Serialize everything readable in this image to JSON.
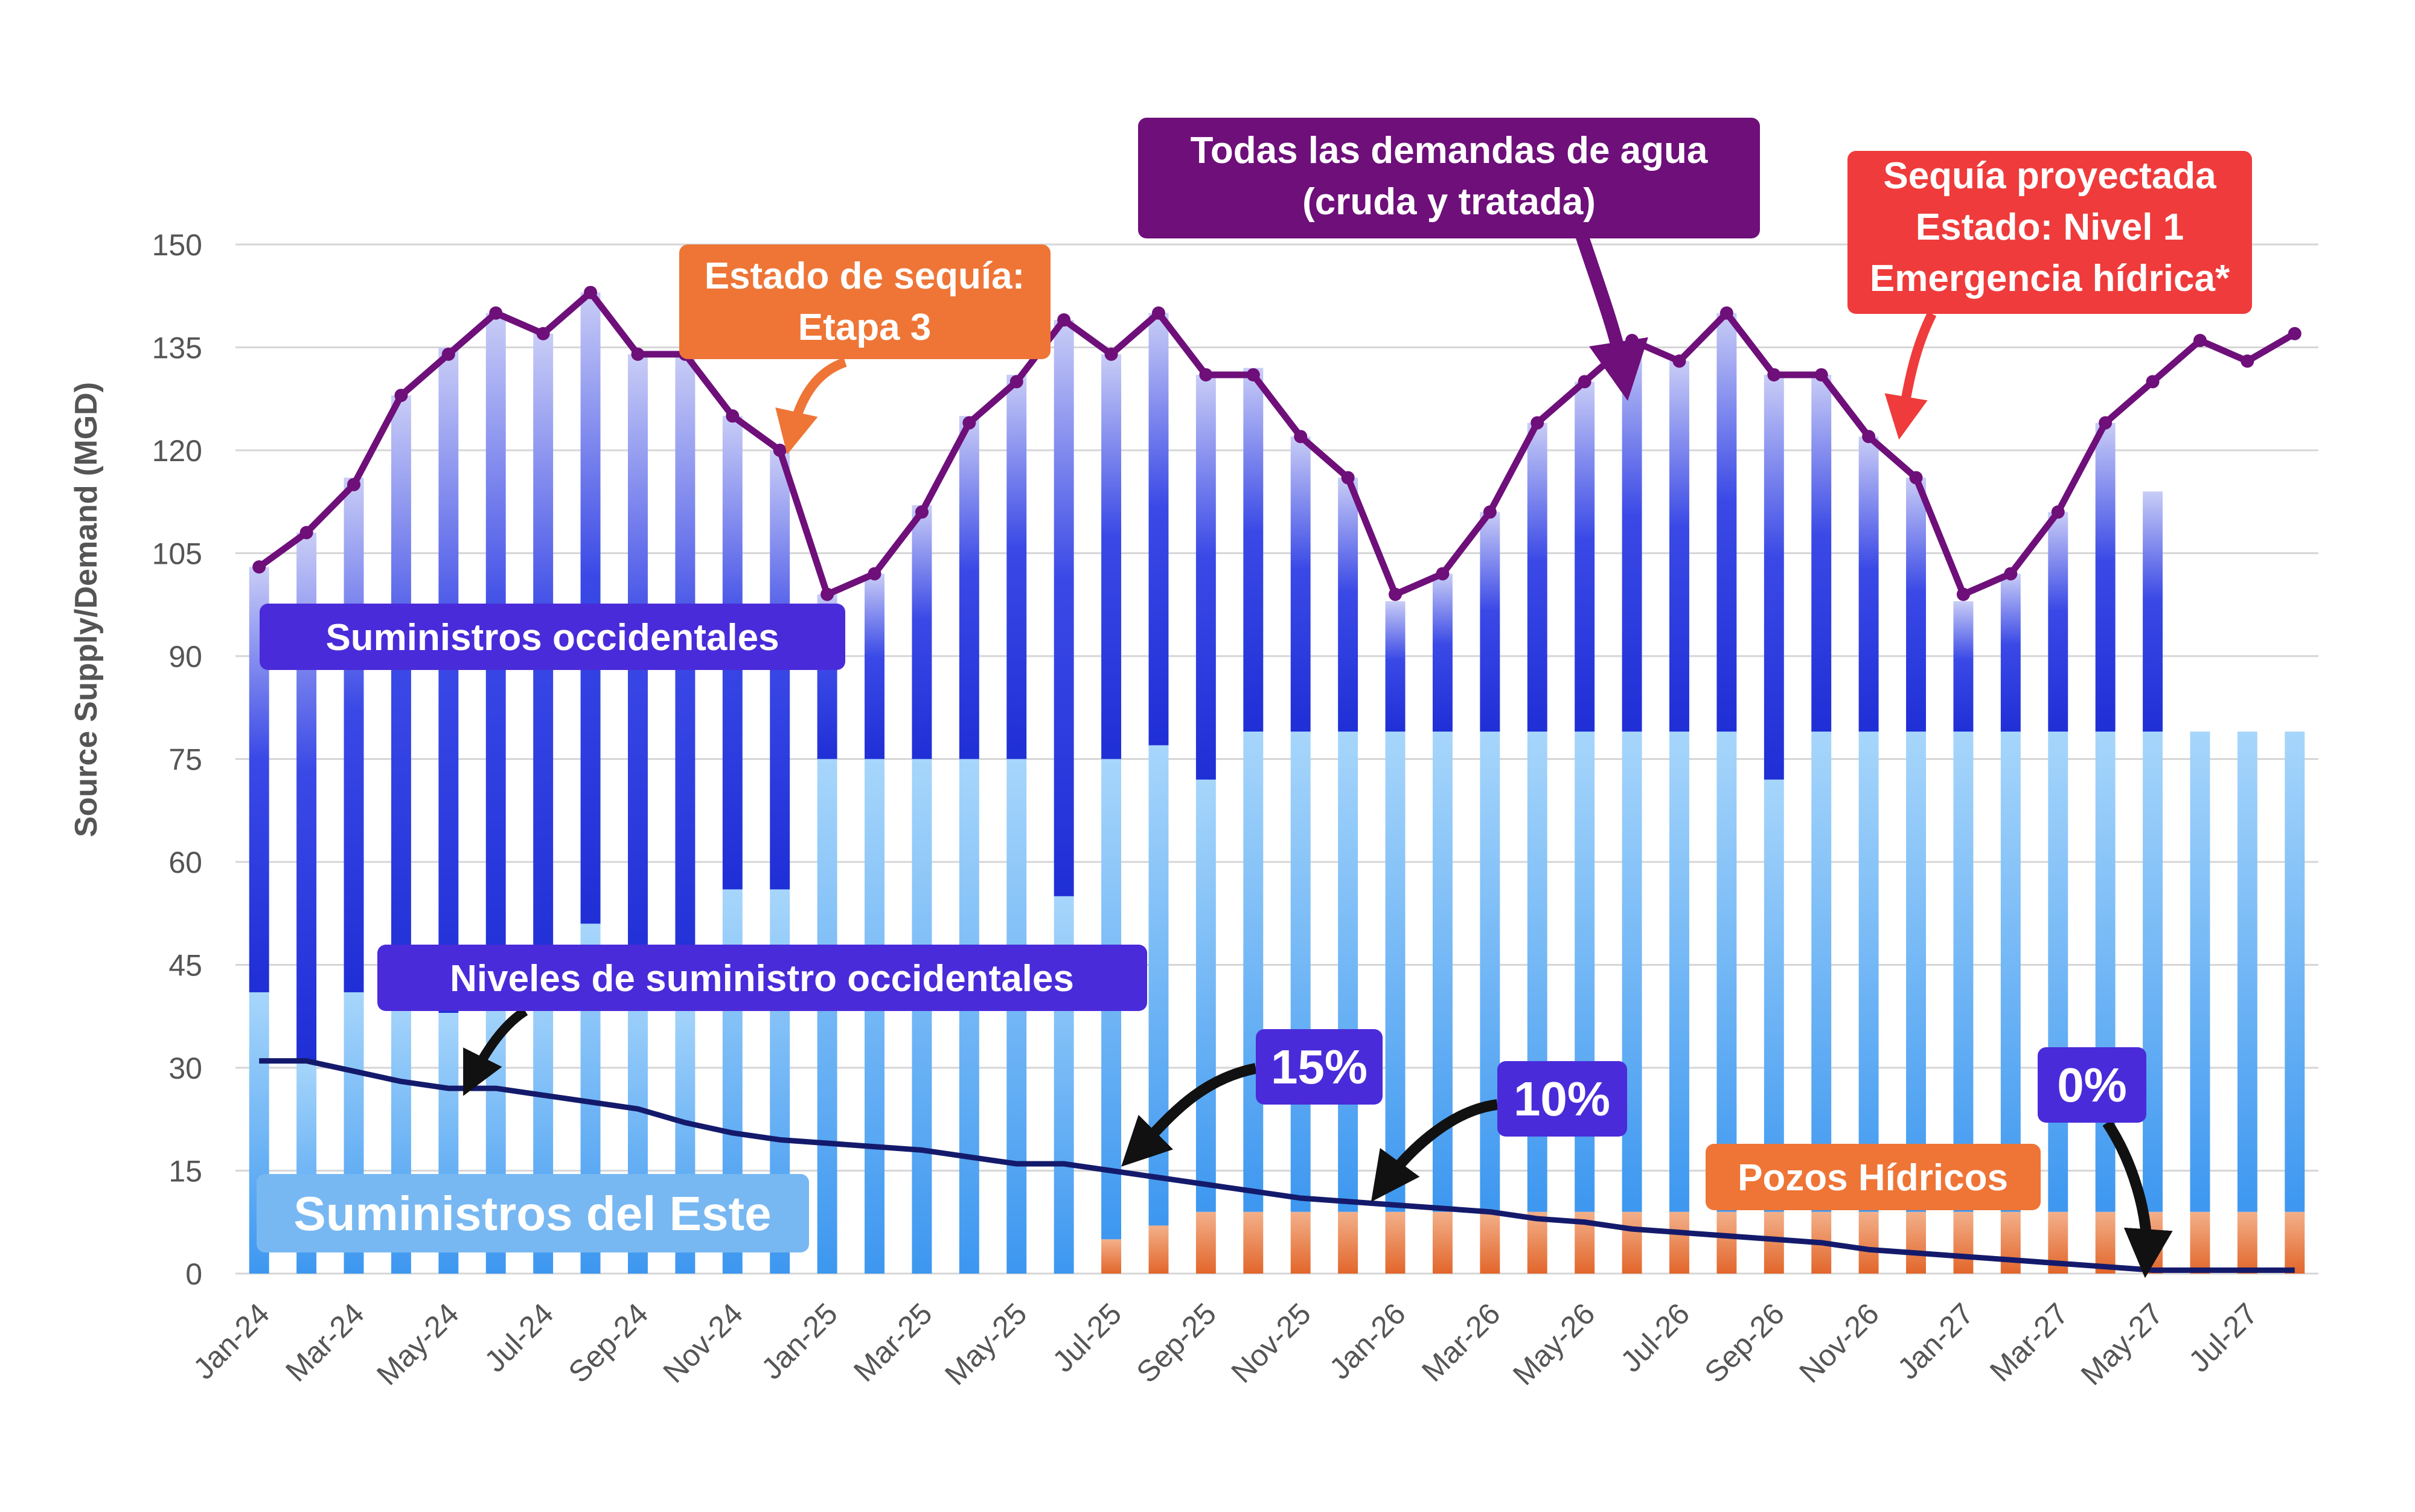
{
  "chart_data": {
    "type": "bar",
    "ylabel": "Source Supply/Demand (MGD)",
    "xlabel": "",
    "ylim": [
      0,
      150
    ],
    "yticks": [
      0,
      15,
      30,
      45,
      60,
      75,
      90,
      105,
      120,
      135,
      150
    ],
    "grid": true,
    "categories": [
      "Jan-24",
      "Feb-24",
      "Mar-24",
      "Apr-24",
      "May-24",
      "Jun-24",
      "Jul-24",
      "Aug-24",
      "Sep-24",
      "Oct-24",
      "Nov-24",
      "Dec-24",
      "Jan-25",
      "Feb-25",
      "Mar-25",
      "Apr-25",
      "May-25",
      "Jun-25",
      "Jul-25",
      "Aug-25",
      "Sep-25",
      "Oct-25",
      "Nov-25",
      "Dec-25",
      "Jan-26",
      "Feb-26",
      "Mar-26",
      "Apr-26",
      "May-26",
      "Jun-26",
      "Jul-26",
      "Aug-26",
      "Sep-26",
      "Oct-26",
      "Nov-26",
      "Dec-26",
      "Jan-27",
      "Feb-27",
      "Mar-27",
      "Apr-27",
      "May-27",
      "Jun-27",
      "Jul-27",
      "Aug-27"
    ],
    "x_tick_labels": [
      "Jan-24",
      "Mar-24",
      "May-24",
      "Jul-24",
      "Sep-24",
      "Nov-24",
      "Jan-25",
      "Mar-25",
      "May-25",
      "Jul-25",
      "Sep-25",
      "Nov-25",
      "Jan-26",
      "Mar-26",
      "May-26",
      "Jul-26",
      "Sep-26",
      "Nov-26",
      "Jan-27",
      "Mar-27",
      "May-27",
      "Jul-27"
    ],
    "series": [
      {
        "name": "Pozos Hídricos",
        "type": "bar",
        "color": "#e8743b",
        "values": [
          0,
          0,
          0,
          0,
          0,
          0,
          0,
          0,
          0,
          0,
          0,
          0,
          0,
          0,
          0,
          0,
          0,
          0,
          5,
          7,
          9,
          9,
          9,
          9,
          9,
          9,
          9,
          9,
          9,
          9,
          9,
          9,
          9,
          9,
          9,
          9,
          9,
          9,
          9,
          9,
          9,
          9,
          9,
          9
        ]
      },
      {
        "name": "Suministros del Este",
        "type": "bar",
        "color": "#5aa8f0",
        "values": [
          41,
          31,
          41,
          40,
          38,
          40,
          43,
          51,
          43,
          40,
          56,
          56,
          75,
          75,
          75,
          75,
          75,
          55,
          70,
          70,
          63,
          70,
          70,
          70,
          70,
          70,
          70,
          70,
          70,
          70,
          70,
          70,
          63,
          70,
          70,
          70,
          70,
          70,
          70,
          70,
          70,
          70,
          70,
          70
        ]
      },
      {
        "name": "Suministros occidentales",
        "type": "bar",
        "color": "#3a3fe0",
        "values": [
          62,
          77,
          75,
          88,
          97,
          100,
          94,
          92,
          91,
          94,
          69,
          64,
          24,
          27,
          37,
          50,
          56,
          84,
          59,
          63,
          59,
          53,
          43,
          37,
          19,
          23,
          32,
          45,
          51,
          57,
          54,
          61,
          59,
          52,
          43,
          37,
          19,
          23,
          32,
          45,
          35,
          0,
          0,
          0
        ]
      },
      {
        "name": "Todas las demandas de agua",
        "type": "line",
        "color": "#6e0f7a",
        "values": [
          103,
          108,
          115,
          128,
          134,
          140,
          137,
          143,
          134,
          134,
          125,
          120,
          99,
          102,
          111,
          124,
          130,
          139,
          134,
          140,
          131,
          131,
          122,
          116,
          99,
          102,
          111,
          124,
          130,
          136,
          133,
          140,
          131,
          131,
          122,
          116,
          99,
          102,
          111,
          124,
          130,
          136,
          133,
          137
        ]
      },
      {
        "name": "Niveles de suministro occidentales",
        "type": "line",
        "color": "#141a6b",
        "values": [
          31,
          31,
          29.5,
          28,
          27,
          27,
          26,
          25,
          24,
          22,
          20.5,
          19.5,
          19,
          18.5,
          18,
          17,
          16,
          16,
          15,
          14,
          13,
          12,
          11,
          10.5,
          10,
          9.5,
          9,
          8,
          7.5,
          6.5,
          6,
          5.5,
          5,
          4.5,
          3.5,
          3,
          2.5,
          2,
          1.5,
          1,
          0.5,
          0.5,
          0.5,
          0.5
        ]
      }
    ],
    "annotations": [
      {
        "label": "Suministros occidentales"
      },
      {
        "label": "Suministros del Este"
      },
      {
        "label": "Niveles de suministro occidentales"
      },
      {
        "label": "Estado de sequía:",
        "label2": "Etapa 3"
      },
      {
        "label": "Todas las demandas de agua",
        "label2": "(cruda y tratada)"
      },
      {
        "label": "Sequía proyectada",
        "label2": "Estado: Nivel 1",
        "label3": "Emergencia hídrica*"
      },
      {
        "label": "15%"
      },
      {
        "label": "10%"
      },
      {
        "label": "0%"
      },
      {
        "label": "Pozos Hídricos"
      }
    ]
  }
}
